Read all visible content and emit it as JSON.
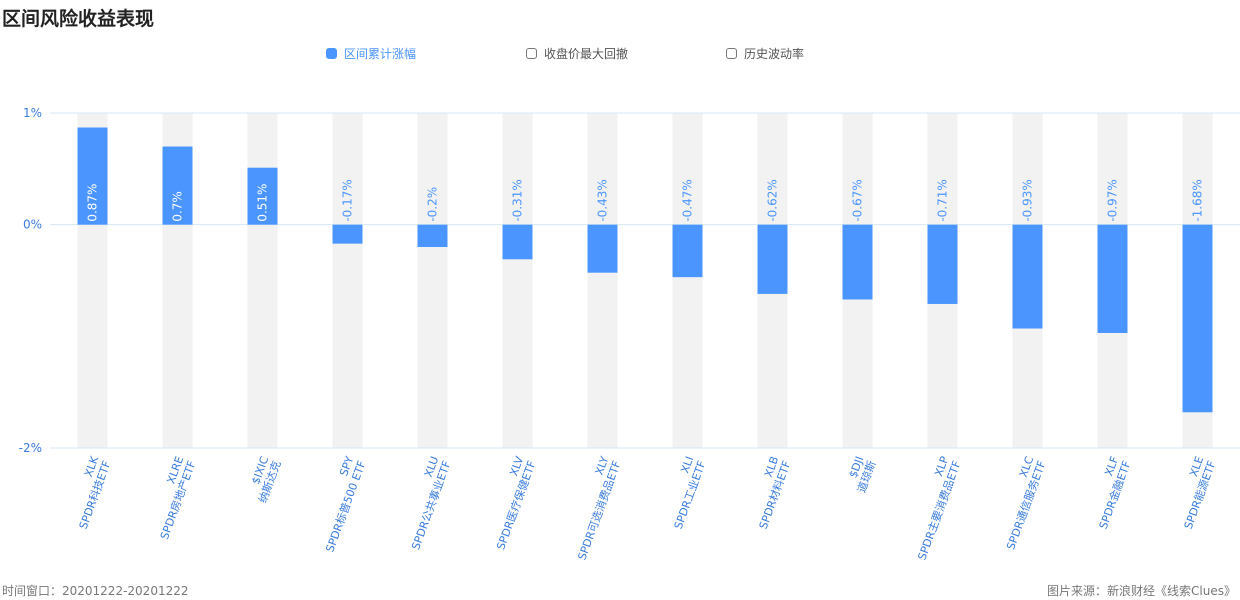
{
  "title": "区间风险收益表现",
  "legend": [
    {
      "label": "区间累计涨幅",
      "checked": true
    },
    {
      "label": "收盘价最大回撤",
      "checked": false
    },
    {
      "label": "历史波动率",
      "checked": false
    }
  ],
  "footer": {
    "time_window": "时间窗口：20201222-20201222",
    "source": "图片来源：新浪财经《线索Clues》"
  },
  "colors": {
    "bar": "#4a95ff",
    "band": "#f2f2f2",
    "axis_text": "#3b7ddd",
    "grid": "#d6e8f5"
  },
  "chart_data": {
    "type": "bar",
    "categories": [
      {
        "code": "XLK",
        "name": "SPDR科技ETF"
      },
      {
        "code": "XLRE",
        "name": "SPDR房地产ETF"
      },
      {
        "code": "$IXIC",
        "name": "纳斯达克"
      },
      {
        "code": "SPY",
        "name": "SPDR标普500 ETF"
      },
      {
        "code": "XLU",
        "name": "SPDR公共事业ETF"
      },
      {
        "code": "XLV",
        "name": "SPDR医疗保健ETF"
      },
      {
        "code": "XLY",
        "name": "SPDR可选消费品ETF"
      },
      {
        "code": "XLI",
        "name": "SPDR工业ETF"
      },
      {
        "code": "XLB",
        "name": "SPDR材料ETF"
      },
      {
        "code": "$DJI",
        "name": "道琼斯"
      },
      {
        "code": "XLP",
        "name": "SPDR主要消费品ETF"
      },
      {
        "code": "XLC",
        "name": "SPDR通信服务ETF"
      },
      {
        "code": "XLF",
        "name": "SPDR金融ETF"
      },
      {
        "code": "XLE",
        "name": "SPDR能源ETF"
      }
    ],
    "series": [
      {
        "name": "区间累计涨幅",
        "values": [
          0.87,
          0.7,
          0.51,
          -0.17,
          -0.2,
          -0.31,
          -0.43,
          -0.47,
          -0.62,
          -0.67,
          -0.71,
          -0.93,
          -0.97,
          -1.68
        ],
        "labels": [
          "0.87%",
          "0.7%",
          "0.51%",
          "-0.17%",
          "-0.2%",
          "-0.31%",
          "-0.43%",
          "-0.47%",
          "-0.62%",
          "-0.67%",
          "-0.71%",
          "-0.93%",
          "-0.97%",
          "-1.68%"
        ]
      }
    ],
    "y_ticks": [
      {
        "value": 1,
        "label": "1%"
      },
      {
        "value": 0,
        "label": "0%"
      },
      {
        "value": -2,
        "label": "-2%"
      }
    ],
    "ylim": [
      -2,
      1
    ],
    "grid": true
  }
}
